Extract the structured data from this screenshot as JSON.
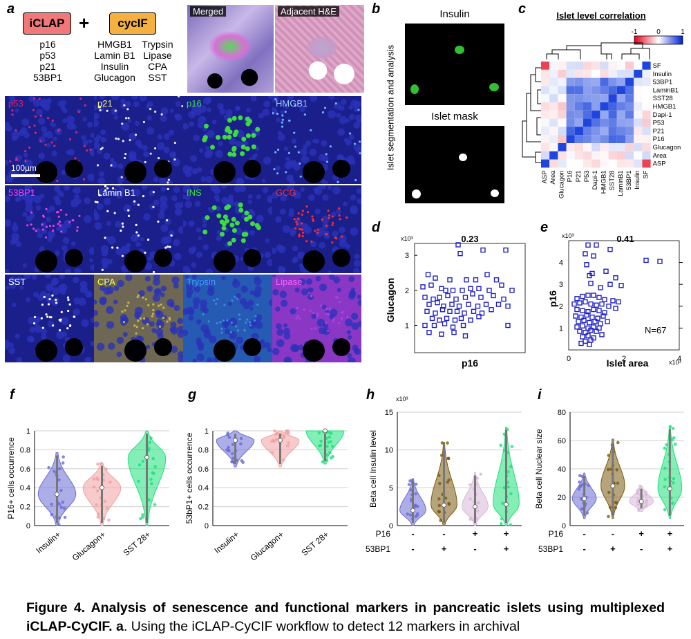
{
  "panel_letters": [
    "a",
    "b",
    "c",
    "d",
    "e",
    "f",
    "g",
    "h",
    "i"
  ],
  "panel_a": {
    "method_iclap": "iCLAP",
    "plus": "+",
    "method_cycif": "cycIF",
    "iclap_markers": [
      "p16",
      "p53",
      "p21",
      "53BP1"
    ],
    "cycif_markers_col1": [
      "HMGB1",
      "Lamin B1",
      "Insulin",
      "Glucagon"
    ],
    "cycif_markers_col2": [
      "Trypsin",
      "Lipase",
      "CPA",
      "SST"
    ],
    "merged_label": "Merged",
    "he_label": "Adjacent H&E",
    "scalebar_label": "100µm",
    "tiles": [
      {
        "label": "p53",
        "label_color": "#e0205a",
        "fg": "#cc2a70"
      },
      {
        "label": "p21",
        "label_color": "#f0f07a",
        "fg": "#e8e8e8"
      },
      {
        "label": "p16",
        "label_color": "#40e040",
        "fg": "#3ddc3d"
      },
      {
        "label": "HMGB1",
        "label_color": "#9ec8ff",
        "fg": "#6fb0ff"
      },
      {
        "label": "53BP1",
        "label_color": "#ff40ff",
        "fg": "#e040e0"
      },
      {
        "label": "Lamin B1",
        "label_color": "#ffffff",
        "fg": "#ffffff"
      },
      {
        "label": "INS",
        "label_color": "#40e040",
        "fg": "#3ddc3d"
      },
      {
        "label": "GCG",
        "label_color": "#ff3030",
        "fg": "#ff2a2a"
      },
      {
        "label": "SST",
        "label_color": "#ffffff",
        "fg": "#ffffff"
      },
      {
        "label": "CPA",
        "label_color": "#ffff50",
        "fg": "#d8c850"
      },
      {
        "label": "Trypsin",
        "label_color": "#40a0ff",
        "fg": "#3a8ae0"
      },
      {
        "label": "Lipase",
        "label_color": "#ff60ff",
        "fg": "#b040e0"
      }
    ]
  },
  "panel_b": {
    "side_label": "Islet segmentation and analysis",
    "top_title": "Insulin",
    "bottom_title": "Islet mask"
  },
  "panel_c": {
    "title": "Islet level correlation",
    "colorbar_ticks": [
      "-1",
      "0",
      "1"
    ],
    "row_labels": [
      "SF",
      "Insulin",
      "53BP1",
      "LaminB1",
      "SST28",
      "HMGB1",
      "Dapi-1",
      "P53",
      "P21",
      "P16",
      "Glucagon",
      "Area",
      "ASP"
    ],
    "col_labels": [
      "ASP",
      "Area",
      "Glucagon",
      "P16",
      "P21",
      "P53",
      "Dapi-1",
      "HMGB1",
      "SST28",
      "LaminB1",
      "53BP1",
      "Insulin",
      "SF"
    ]
  },
  "chart_data": [
    {
      "panel": "d",
      "type": "scatter",
      "title": "0.23",
      "xlabel": "p16",
      "ylabel": "Glucagon",
      "y_multiplier": "x10³",
      "yticks": [
        "1",
        "2",
        "3"
      ],
      "ylim": [
        0.3,
        3.3
      ],
      "xlim": [
        0,
        1
      ],
      "points": [
        [
          0.38,
          3.3
        ],
        [
          0.62,
          3.15
        ],
        [
          0.84,
          3.15
        ],
        [
          0.4,
          3.05
        ],
        [
          0.09,
          2.45
        ],
        [
          0.16,
          2.35
        ],
        [
          0.3,
          2.3
        ],
        [
          0.46,
          2.3
        ],
        [
          0.55,
          2.3
        ],
        [
          0.66,
          2.45
        ],
        [
          0.75,
          2.3
        ],
        [
          0.8,
          2.15
        ],
        [
          0.04,
          2.1
        ],
        [
          0.12,
          2.15
        ],
        [
          0.22,
          2.05
        ],
        [
          0.26,
          2.0
        ],
        [
          0.33,
          2.0
        ],
        [
          0.42,
          2.0
        ],
        [
          0.5,
          2.05
        ],
        [
          0.58,
          2.05
        ],
        [
          0.68,
          2.0
        ],
        [
          0.9,
          2.0
        ],
        [
          0.06,
          1.8
        ],
        [
          0.14,
          1.75
        ],
        [
          0.2,
          1.8
        ],
        [
          0.28,
          1.85
        ],
        [
          0.36,
          1.75
        ],
        [
          0.45,
          1.8
        ],
        [
          0.52,
          1.9
        ],
        [
          0.6,
          1.8
        ],
        [
          0.72,
          1.85
        ],
        [
          0.82,
          1.75
        ],
        [
          0.1,
          1.6
        ],
        [
          0.18,
          1.65
        ],
        [
          0.24,
          1.55
        ],
        [
          0.32,
          1.6
        ],
        [
          0.39,
          1.55
        ],
        [
          0.48,
          1.6
        ],
        [
          0.57,
          1.55
        ],
        [
          0.65,
          1.6
        ],
        [
          0.77,
          1.6
        ],
        [
          0.86,
          1.55
        ],
        [
          0.08,
          1.4
        ],
        [
          0.16,
          1.35
        ],
        [
          0.23,
          1.45
        ],
        [
          0.3,
          1.4
        ],
        [
          0.37,
          1.4
        ],
        [
          0.44,
          1.35
        ],
        [
          0.53,
          1.4
        ],
        [
          0.61,
          1.35
        ],
        [
          0.7,
          1.45
        ],
        [
          0.13,
          1.2
        ],
        [
          0.2,
          1.15
        ],
        [
          0.27,
          1.2
        ],
        [
          0.35,
          1.15
        ],
        [
          0.41,
          1.2
        ],
        [
          0.5,
          1.15
        ],
        [
          0.58,
          1.25
        ],
        [
          0.06,
          1.0
        ],
        [
          0.15,
          1.0
        ],
        [
          0.25,
          1.05
        ],
        [
          0.33,
          0.95
        ],
        [
          0.43,
          1.0
        ],
        [
          0.86,
          1.0
        ],
        [
          0.1,
          0.8
        ],
        [
          0.22,
          0.75
        ],
        [
          0.34,
          0.8
        ],
        [
          0.45,
          0.7
        ]
      ]
    },
    {
      "panel": "e",
      "type": "scatter",
      "title": "0.41",
      "xlabel": "Islet area",
      "ylabel": "p16",
      "x_multiplier": "x10⁴",
      "y_multiplier": "x10³",
      "xticks": [
        "0",
        "2",
        "4"
      ],
      "yticks": [
        "1",
        "2",
        "3",
        "4"
      ],
      "xlim": [
        0,
        4
      ],
      "ylim": [
        0,
        5
      ],
      "annotation": "N=67",
      "points": [
        [
          0.7,
          4.8
        ],
        [
          1.0,
          4.8
        ],
        [
          1.5,
          4.6
        ],
        [
          0.6,
          4.4
        ],
        [
          0.9,
          4.3
        ],
        [
          2.8,
          4.1
        ],
        [
          3.3,
          4.05
        ],
        [
          0.65,
          3.9
        ],
        [
          0.85,
          3.5
        ],
        [
          1.35,
          3.6
        ],
        [
          0.75,
          3.4
        ],
        [
          1.7,
          3.3
        ],
        [
          0.8,
          3.05
        ],
        [
          1.15,
          2.85
        ],
        [
          1.5,
          3.0
        ],
        [
          1.9,
          2.95
        ],
        [
          0.3,
          2.35
        ],
        [
          0.5,
          2.45
        ],
        [
          0.7,
          2.5
        ],
        [
          0.9,
          2.5
        ],
        [
          1.1,
          2.4
        ],
        [
          1.3,
          2.3
        ],
        [
          1.6,
          2.25
        ],
        [
          1.8,
          2.2
        ],
        [
          0.2,
          2.1
        ],
        [
          0.4,
          2.15
        ],
        [
          0.6,
          2.2
        ],
        [
          0.8,
          2.1
        ],
        [
          1.0,
          2.05
        ],
        [
          1.2,
          2.1
        ],
        [
          1.45,
          2.0
        ],
        [
          1.7,
          1.9
        ],
        [
          0.3,
          1.85
        ],
        [
          0.5,
          1.8
        ],
        [
          0.7,
          1.75
        ],
        [
          0.9,
          1.85
        ],
        [
          1.1,
          1.8
        ],
        [
          1.3,
          1.7
        ],
        [
          0.25,
          1.55
        ],
        [
          0.45,
          1.5
        ],
        [
          0.65,
          1.6
        ],
        [
          0.85,
          1.5
        ],
        [
          1.05,
          1.45
        ],
        [
          1.25,
          1.55
        ],
        [
          0.35,
          1.3
        ],
        [
          0.55,
          1.35
        ],
        [
          0.75,
          1.25
        ],
        [
          0.95,
          1.3
        ],
        [
          1.15,
          1.2
        ],
        [
          1.4,
          1.3
        ],
        [
          0.3,
          1.05
        ],
        [
          0.5,
          1.1
        ],
        [
          0.7,
          1.0
        ],
        [
          0.9,
          1.05
        ],
        [
          1.1,
          1.0
        ],
        [
          0.4,
          0.85
        ],
        [
          0.6,
          0.8
        ],
        [
          0.8,
          0.9
        ],
        [
          1.0,
          0.85
        ],
        [
          0.5,
          0.6
        ],
        [
          0.7,
          0.65
        ],
        [
          0.9,
          0.55
        ],
        [
          0.6,
          0.4
        ],
        [
          0.8,
          0.45
        ],
        [
          1.2,
          0.7
        ],
        [
          0.45,
          0.3
        ],
        [
          0.75,
          0.25
        ]
      ]
    },
    {
      "panel": "f",
      "type": "violin",
      "ylabel": "P16+ cells occurrence",
      "categories": [
        "Insulin+",
        "Glucagon+",
        "SST 28+"
      ],
      "yticks": [
        "0",
        "0.2",
        "0.4",
        "0.6",
        "0.8",
        "1"
      ],
      "ylim": [
        0,
        1
      ],
      "medians": [
        0.33,
        0.4,
        0.72
      ],
      "ranges": [
        [
          0,
          0.77
        ],
        [
          0,
          0.66
        ],
        [
          0,
          1
        ]
      ]
    },
    {
      "panel": "g",
      "type": "violin",
      "ylabel": "53bP1+ cells occurrence",
      "categories": [
        "Insulin+",
        "Glucagon+",
        "SST 28+"
      ],
      "yticks": [
        "0",
        "0.2",
        "0.4",
        "0.6",
        "0.8",
        "1"
      ],
      "ylim": [
        0,
        1
      ],
      "medians": [
        0.9,
        0.9,
        1.0
      ],
      "ranges": [
        [
          0.62,
          1
        ],
        [
          0.62,
          1
        ],
        [
          0.65,
          1
        ]
      ]
    },
    {
      "panel": "h",
      "type": "violin",
      "ylabel": "Beta cell Insulin level",
      "y_multiplier": "x10³",
      "yticks": [
        "0",
        "5",
        "10",
        "15"
      ],
      "ylim": [
        0,
        15
      ],
      "groups_p16": [
        "-",
        "-",
        "+",
        "+"
      ],
      "groups_53bp1": [
        "-",
        "+",
        "-",
        "+"
      ],
      "row_labels": [
        "P16",
        "53BP1"
      ],
      "medians": [
        2.0,
        2.7,
        2.5,
        2.8
      ],
      "ranges": [
        [
          0,
          6.2
        ],
        [
          0,
          11.0
        ],
        [
          0,
          7.0
        ],
        [
          0,
          13.0
        ]
      ]
    },
    {
      "panel": "i",
      "type": "violin",
      "ylabel": "Beta cell Nuclear size",
      "yticks": [
        "0",
        "20",
        "40",
        "60",
        "80"
      ],
      "ylim": [
        0,
        80
      ],
      "groups_p16": [
        "-",
        "-",
        "+",
        "+"
      ],
      "groups_53bp1": [
        "-",
        "+",
        "-",
        "+"
      ],
      "row_labels": [
        "P16",
        "53BP1"
      ],
      "medians": [
        19,
        28,
        17,
        26
      ],
      "ranges": [
        [
          5,
          37
        ],
        [
          5,
          61
        ],
        [
          10,
          28
        ],
        [
          5,
          70
        ]
      ]
    }
  ],
  "caption": {
    "bold_text": "Figure 4. Analysis of senescence and functional markers in pancreatic islets using multiplexed iCLAP-CyCIF.",
    "panel_ref": "a",
    "rest_text": ". Using the iCLAP-CyCIF workflow to detect 12 markers in archival"
  },
  "colors": {
    "violin_blue": "#6a6ad6",
    "violin_pink": "#f0a0a0",
    "violin_green": "#1ee07a",
    "violin_brown": "#7a5a10",
    "violin_lavender": "#d8b8d8",
    "scatter_blue": "#1e1ec8"
  }
}
